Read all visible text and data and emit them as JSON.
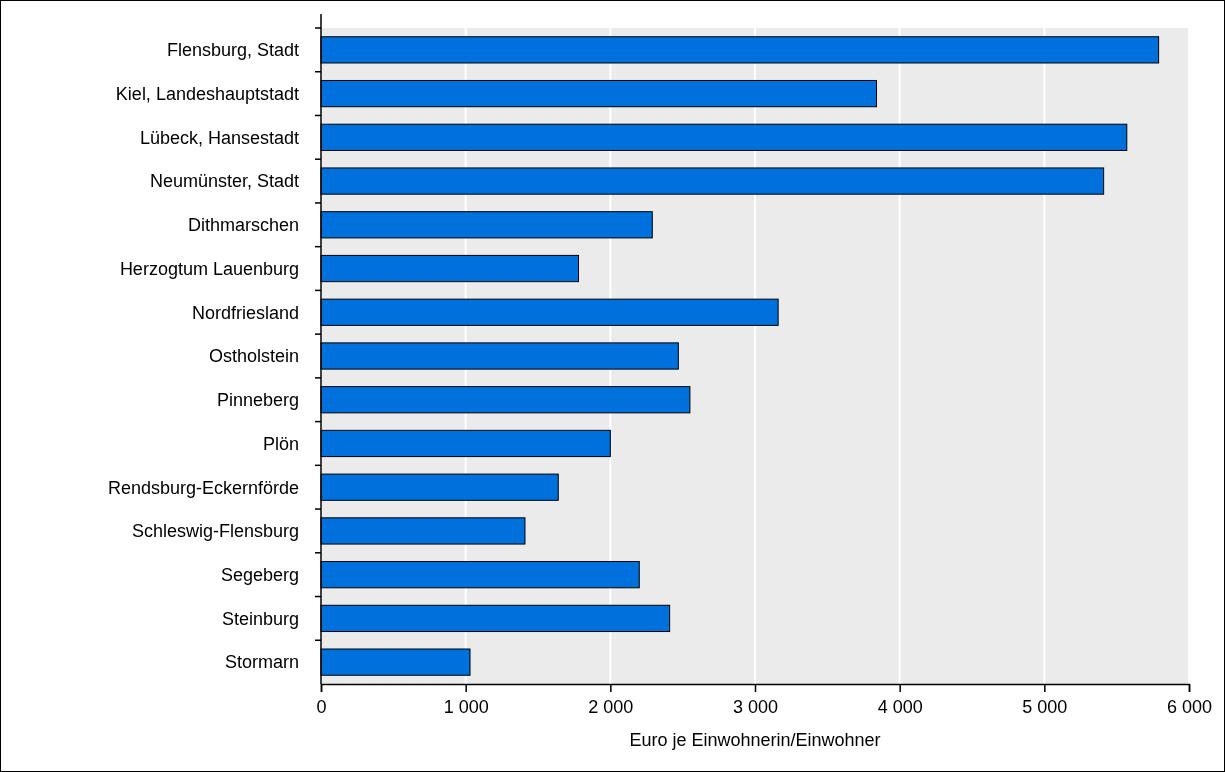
{
  "chart_data": {
    "type": "bar",
    "orientation": "horizontal",
    "xlabel": "Euro je Einwohnerin/Einwohner",
    "categories": [
      "Flensburg, Stadt",
      "Kiel, Landeshauptstadt",
      "Lübeck, Hansestadt",
      "Neumünster, Stadt",
      "Dithmarschen",
      "Herzogtum Lauenburg",
      "Nordfriesland",
      "Ostholstein",
      "Pinneberg",
      "Plön",
      "Rendsburg-Eckernförde",
      "Schleswig-Flensburg",
      "Segeberg",
      "Steinburg",
      "Stormarn"
    ],
    "values": [
      5790,
      3840,
      5570,
      5410,
      2290,
      1780,
      3160,
      2470,
      2550,
      2000,
      1640,
      1410,
      2200,
      2410,
      1030
    ],
    "color": "#0070dd",
    "xlim": [
      0,
      6000
    ],
    "xticks": [
      0,
      {
        "value": 1000,
        "label": "1 000"
      },
      {
        "value": 2000,
        "label": "2 000"
      },
      {
        "value": 3000,
        "label": "3 000"
      },
      {
        "value": 4000,
        "label": "4 000"
      },
      {
        "value": 5000,
        "label": "5 000"
      },
      {
        "value": 6000,
        "label": "6 000"
      }
    ],
    "grid": "x"
  }
}
